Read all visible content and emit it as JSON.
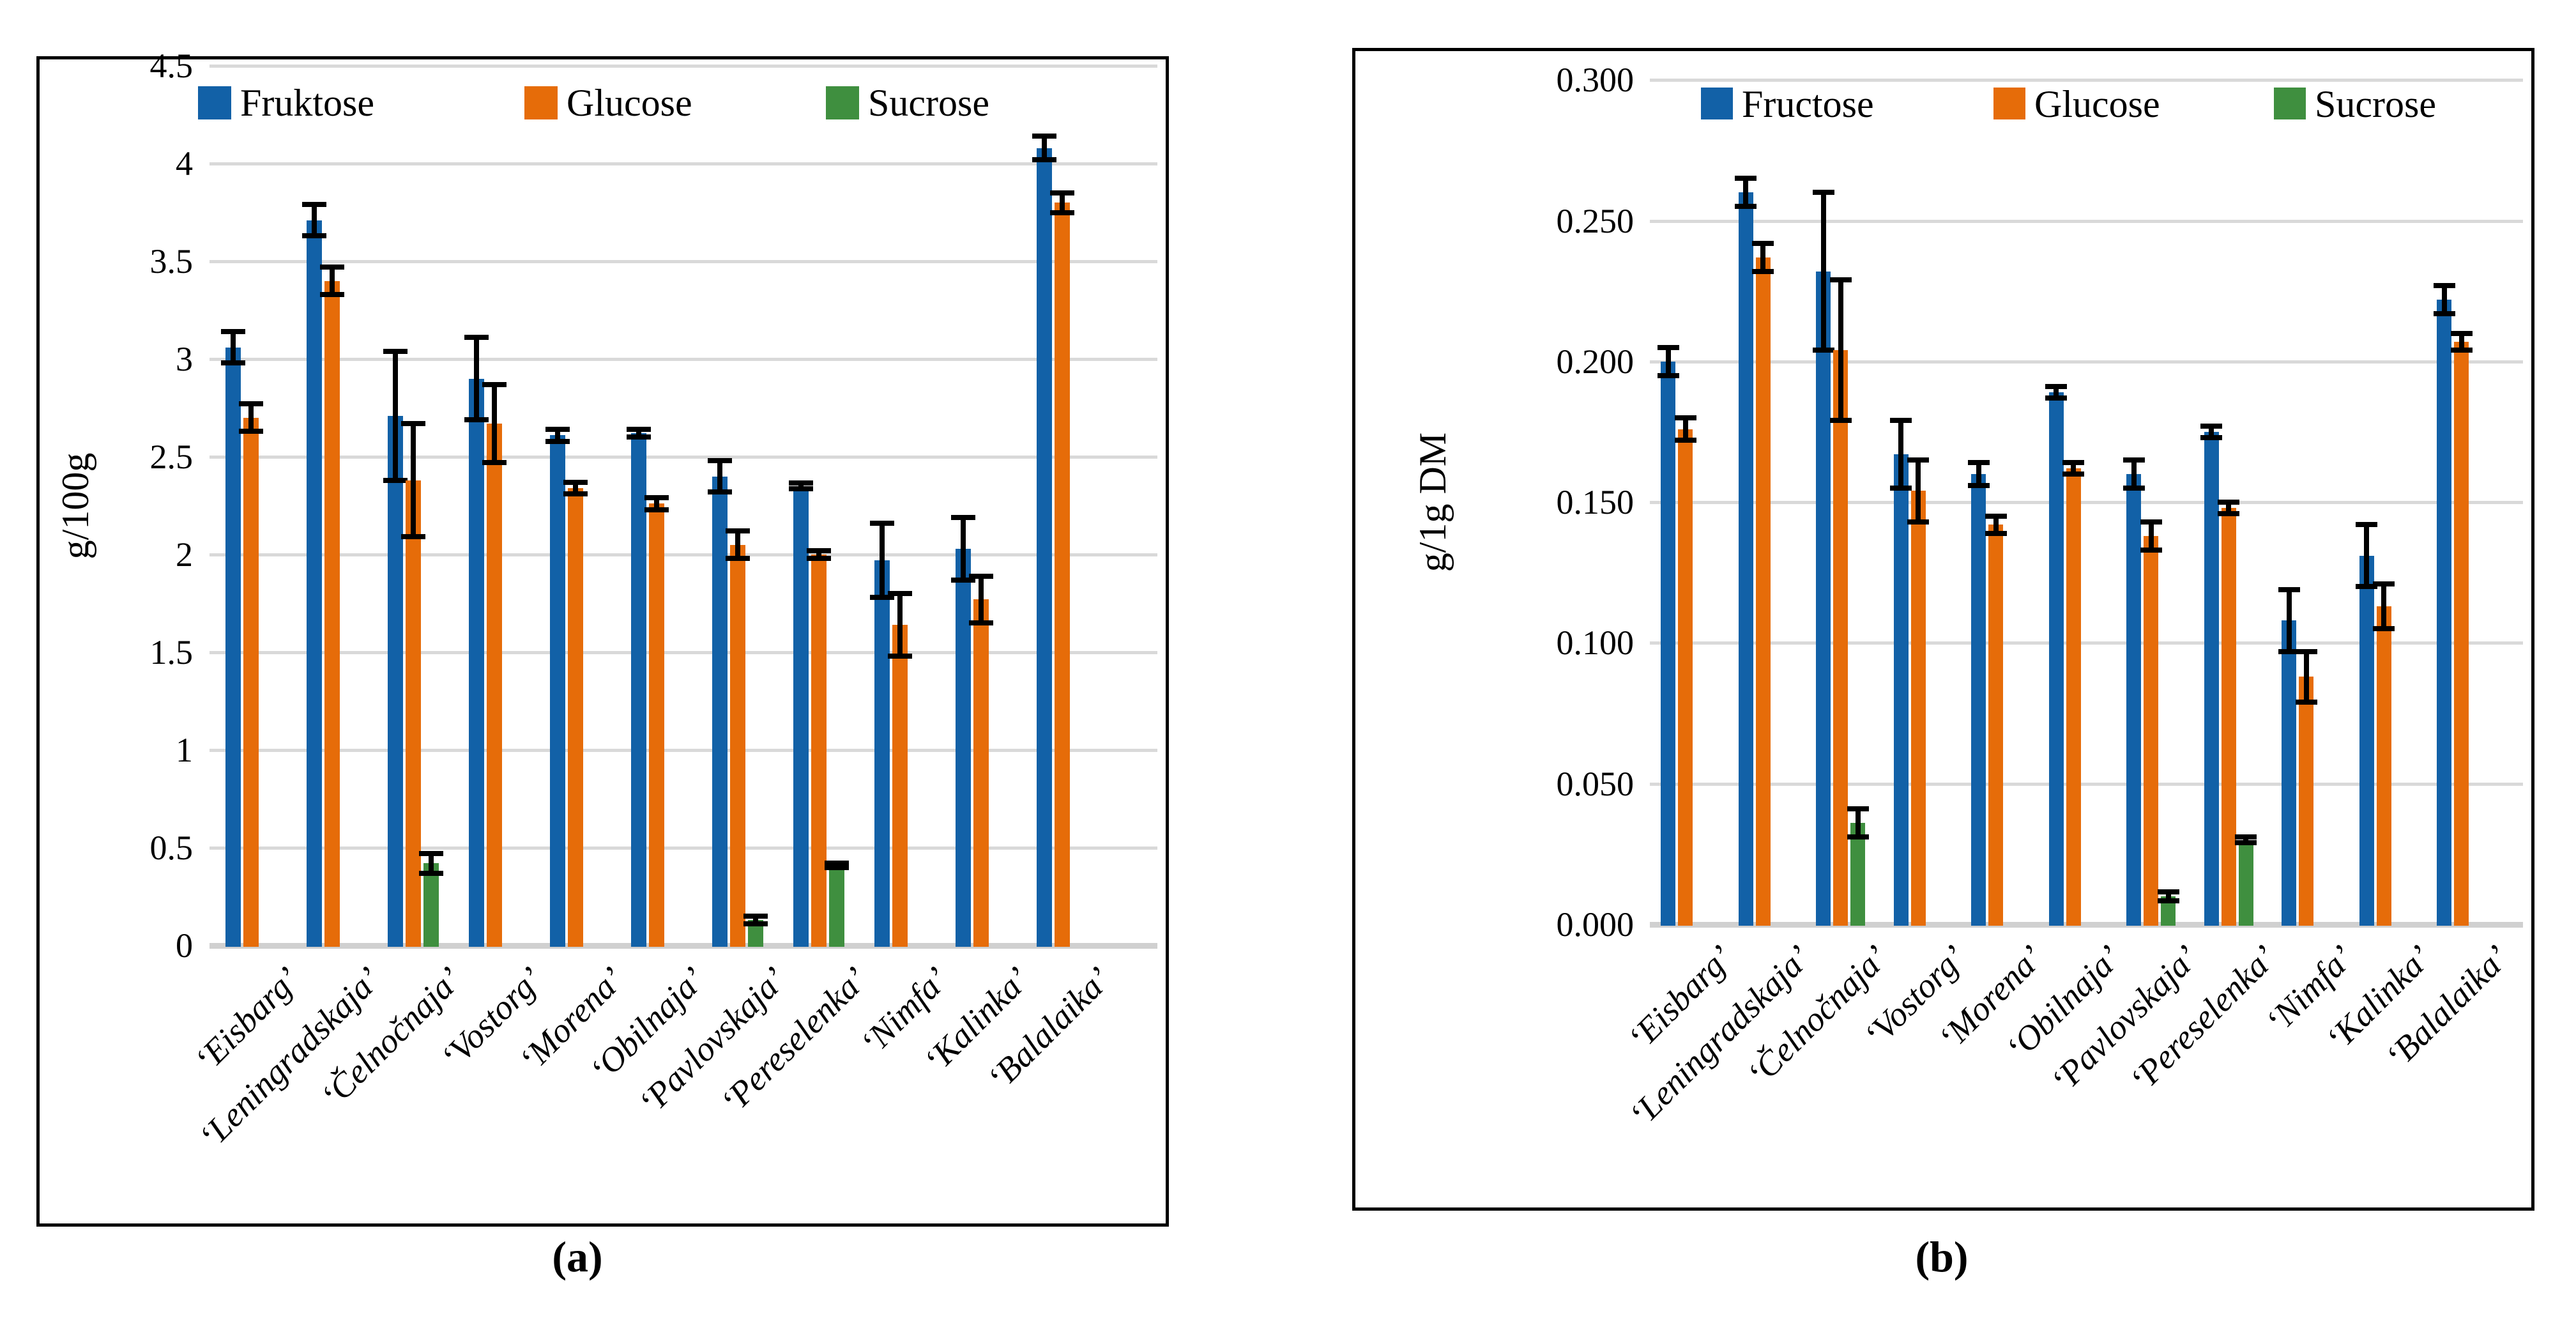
{
  "figure_captions": {
    "a": "(a)",
    "b": "(b)"
  },
  "colors": {
    "fructose": "#1261A7",
    "glucose": "#E66C09",
    "sucrose": "#3F8F3F",
    "gridline": "#D9D9D9",
    "axis_line": "#D0D0D0",
    "error_bar": "#000000"
  },
  "chart_data": [
    {
      "type": "bar",
      "panel": "a",
      "caption": "(a)",
      "ylabel": "g/100g",
      "ylim": [
        0,
        4.5
      ],
      "grid": true,
      "legend_position": "top-inside",
      "yticks": [
        {
          "v": 0,
          "label": "0"
        },
        {
          "v": 0.5,
          "label": "0.5"
        },
        {
          "v": 1,
          "label": "1"
        },
        {
          "v": 1.5,
          "label": "1.5"
        },
        {
          "v": 2,
          "label": "2"
        },
        {
          "v": 2.5,
          "label": "2.5"
        },
        {
          "v": 3,
          "label": "3"
        },
        {
          "v": 3.5,
          "label": "3.5"
        },
        {
          "v": 4,
          "label": "4"
        },
        {
          "v": 4.5,
          "label": "4.5"
        }
      ],
      "categories": [
        "‘Eisbarg’",
        "‘Leningradskaja’",
        "‘Čelnočnaja’",
        "‘Vostorg’",
        "‘Morena’",
        "‘Obilnaja’",
        "‘Pavlovskaja’",
        "‘Pereselenka’",
        "‘Nimfa’",
        "‘Kalinka’",
        "‘Balalaika’"
      ],
      "series": [
        {
          "name": "Fruktose",
          "color_key": "fructose",
          "values": [
            3.06,
            3.71,
            2.71,
            2.9,
            2.61,
            2.62,
            2.4,
            2.35,
            1.97,
            2.03,
            4.08
          ],
          "errors": [
            0.08,
            0.08,
            0.33,
            0.21,
            0.03,
            0.02,
            0.08,
            0.015,
            0.19,
            0.16,
            0.06
          ]
        },
        {
          "name": "Glucose",
          "color_key": "glucose",
          "values": [
            2.7,
            3.4,
            2.38,
            2.67,
            2.34,
            2.26,
            2.05,
            2.0,
            1.64,
            1.77,
            3.8
          ],
          "errors": [
            0.07,
            0.07,
            0.29,
            0.2,
            0.03,
            0.03,
            0.07,
            0.02,
            0.16,
            0.12,
            0.05
          ]
        },
        {
          "name": "Sucrose",
          "color_key": "sucrose",
          "values": [
            null,
            null,
            0.42,
            null,
            null,
            null,
            0.13,
            0.41,
            null,
            null,
            null
          ],
          "errors": [
            null,
            null,
            0.05,
            null,
            null,
            null,
            0.02,
            0.012,
            null,
            null,
            null
          ]
        }
      ]
    },
    {
      "type": "bar",
      "panel": "b",
      "caption": "(b)",
      "ylabel": "g/1g DM",
      "ylim": [
        0,
        0.3
      ],
      "grid": true,
      "legend_position": "top-inside",
      "yticks": [
        {
          "v": 0.0,
          "label": "0.000"
        },
        {
          "v": 0.05,
          "label": "0.050"
        },
        {
          "v": 0.1,
          "label": "0.100"
        },
        {
          "v": 0.15,
          "label": "0.150"
        },
        {
          "v": 0.2,
          "label": "0.200"
        },
        {
          "v": 0.25,
          "label": "0.250"
        },
        {
          "v": 0.3,
          "label": "0.300"
        }
      ],
      "categories": [
        "‘Eisbarg’",
        "‘Leningradskaja’",
        "‘Čelnočnaja’",
        "‘Vostorg’",
        "‘Morena’",
        "‘Obilnaja’",
        "‘Pavlovskaja’",
        "‘Pereselenka’",
        "‘Nimfa’",
        "‘Kalinka’",
        "‘Balalaika’"
      ],
      "series": [
        {
          "name": "Fructose",
          "color_key": "fructose",
          "values": [
            0.2,
            0.26,
            0.232,
            0.167,
            0.16,
            0.189,
            0.16,
            0.175,
            0.108,
            0.131,
            0.222
          ],
          "errors": [
            0.005,
            0.005,
            0.028,
            0.012,
            0.004,
            0.002,
            0.005,
            0.002,
            0.011,
            0.011,
            0.005
          ]
        },
        {
          "name": "Glucose",
          "color_key": "glucose",
          "values": [
            0.176,
            0.237,
            0.204,
            0.154,
            0.142,
            0.162,
            0.138,
            0.148,
            0.088,
            0.113,
            0.207
          ],
          "errors": [
            0.004,
            0.005,
            0.025,
            0.011,
            0.003,
            0.002,
            0.005,
            0.002,
            0.009,
            0.008,
            0.003
          ]
        },
        {
          "name": "Sucrose",
          "color_key": "sucrose",
          "values": [
            null,
            null,
            0.036,
            null,
            null,
            null,
            0.01,
            0.03,
            null,
            null,
            null
          ],
          "errors": [
            null,
            null,
            0.005,
            null,
            null,
            null,
            0.0015,
            0.001,
            null,
            null,
            null
          ]
        }
      ]
    }
  ]
}
